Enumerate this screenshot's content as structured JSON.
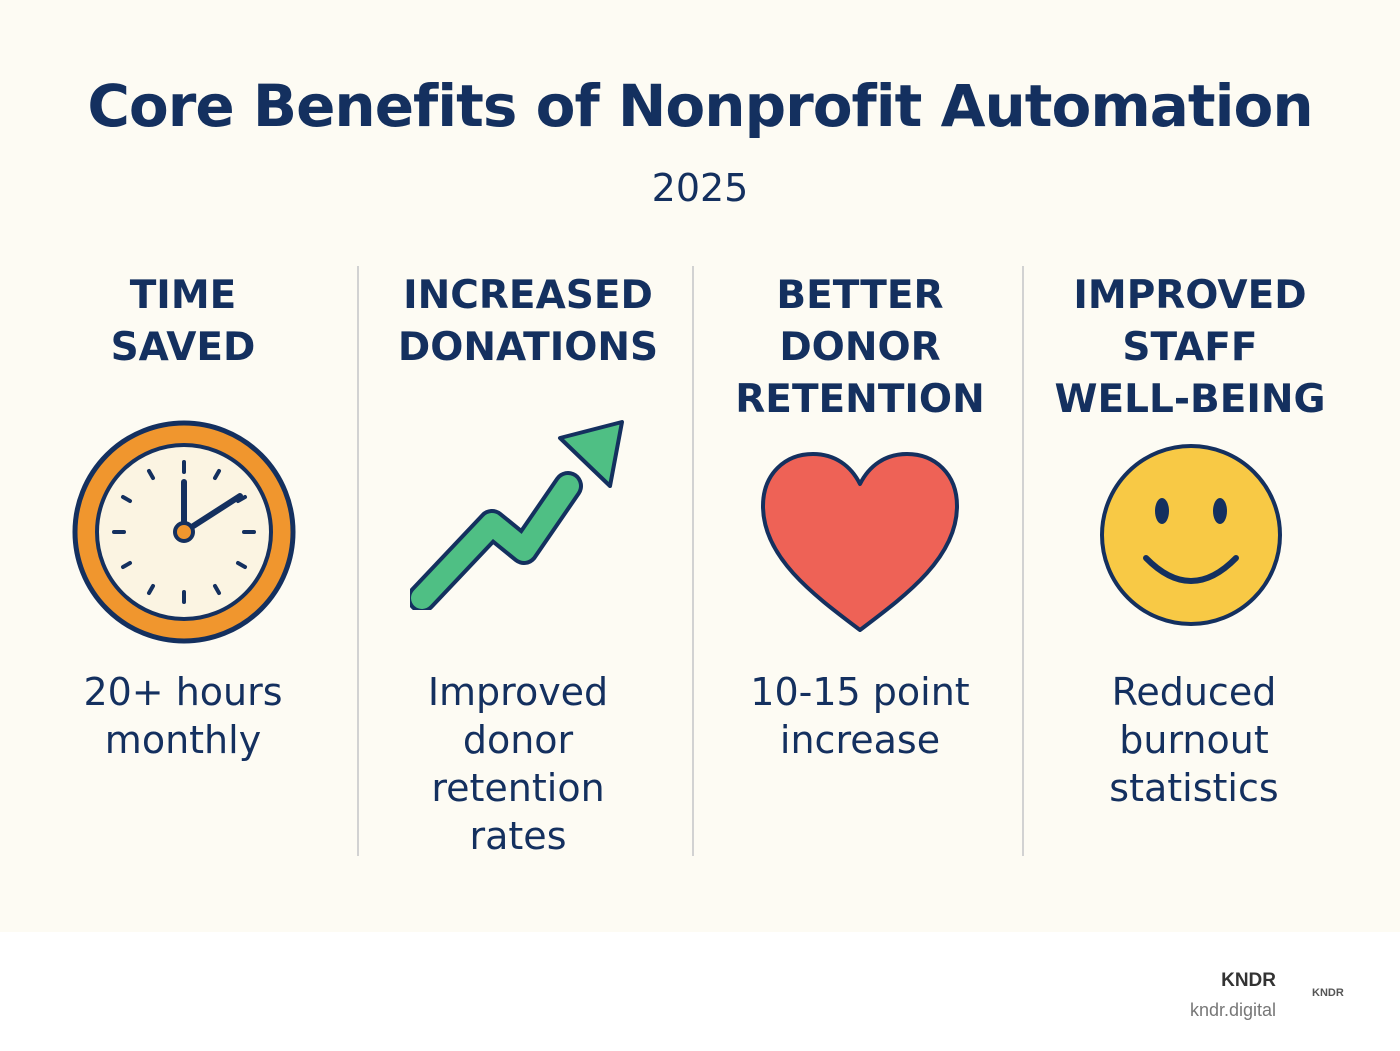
{
  "title": "Core Benefits of Nonprofit Automation",
  "subtitle": "2025",
  "columns": [
    {
      "heading": "TIME\nSAVED",
      "icon": "clock-icon",
      "description": "20+ hours\nmonthly"
    },
    {
      "heading": "INCREASED\nDONATIONS",
      "icon": "trend-up-arrow-icon",
      "description": "Improved\ndonor\nretention\nrates"
    },
    {
      "heading": "BETTER\nDONOR\nRETENTION",
      "icon": "heart-icon",
      "description": "10-15 point\nincrease"
    },
    {
      "heading": "IMPROVED\nSTAFF\nWELL-BEING",
      "icon": "smiley-face-icon",
      "description": "Reduced\nburnout\nstatistics"
    }
  ],
  "footer": {
    "brand": "KNDR",
    "url": "kndr.digital",
    "logo": "KNDR"
  },
  "colors": {
    "navy": "#14305f",
    "background": "#fdfbf3",
    "clock_orange": "#f0962e",
    "arrow_green": "#4fbf84",
    "heart_red": "#ee6256",
    "smiley_yellow": "#f8c945"
  }
}
